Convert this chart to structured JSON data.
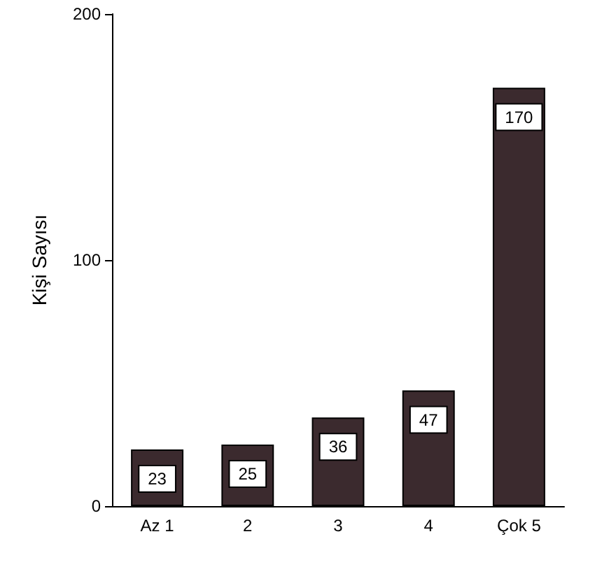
{
  "chart_data": {
    "type": "bar",
    "ylabel": "Kişi Sayısı",
    "categories": [
      "Az 1",
      "2",
      "3",
      "4",
      "Çok 5"
    ],
    "values": [
      23,
      25,
      36,
      47,
      170
    ],
    "color": "#3b2a2e",
    "ylim": [
      0,
      200
    ],
    "yticks": [
      0,
      100,
      200
    ],
    "grid": false,
    "data_labels": true
  }
}
